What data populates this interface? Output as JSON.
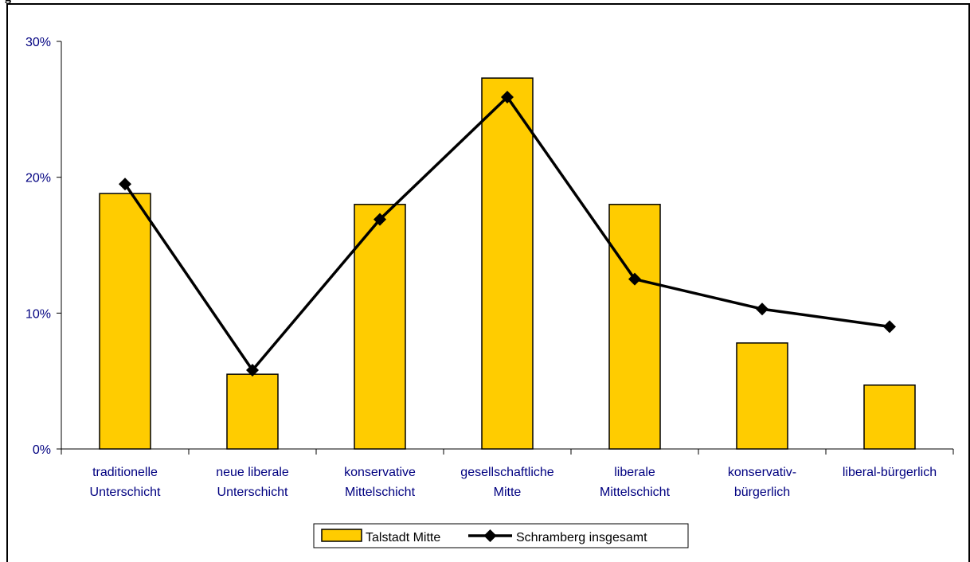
{
  "page": {
    "cut_title": "g"
  },
  "chart_data": {
    "type": "bar",
    "title": "",
    "xlabel": "",
    "ylabel": "",
    "ylim": [
      0,
      30
    ],
    "yticks": [
      "0%",
      "10%",
      "20%",
      "30%"
    ],
    "categories": [
      [
        "traditionelle",
        "Unterschicht"
      ],
      [
        "neue liberale",
        "Unterschicht"
      ],
      [
        "konservative",
        "Mittelschicht"
      ],
      [
        "gesellschaftliche",
        "Mitte"
      ],
      [
        "liberale",
        "Mittelschicht"
      ],
      [
        "konservativ-",
        "bürgerlich"
      ],
      [
        "liberal-bürgerlich"
      ]
    ],
    "series": [
      {
        "name": "Talstadt Mitte",
        "kind": "bar",
        "color": "#FFCC00",
        "values": [
          18.8,
          5.5,
          18.0,
          27.3,
          18.0,
          7.8,
          4.7
        ]
      },
      {
        "name": "Schramberg insgesamt",
        "kind": "line",
        "color": "#000000",
        "values": [
          19.5,
          5.8,
          16.9,
          25.9,
          12.5,
          10.3,
          9.0
        ]
      }
    ],
    "grid": false,
    "legend": "bottom"
  }
}
